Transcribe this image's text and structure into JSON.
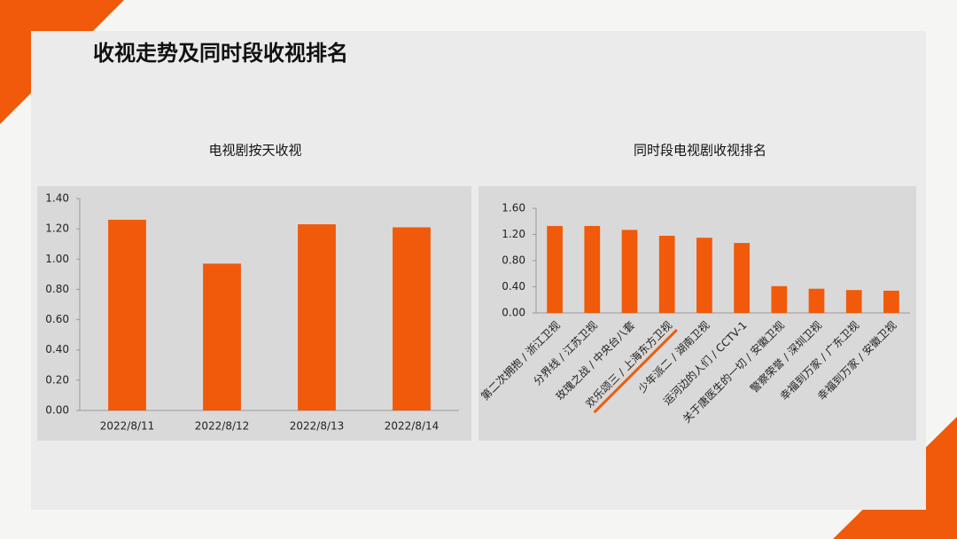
{
  "slide_title": "收视走势及同时段收视排名",
  "chart_data": [
    {
      "type": "bar",
      "title": "电视剧按天收视",
      "categories": [
        "2022/8/11",
        "2022/8/12",
        "2022/8/13",
        "2022/8/14"
      ],
      "values": [
        1.26,
        0.97,
        1.23,
        1.21
      ],
      "color": "#f05a0a",
      "ylim": [
        0,
        1.4
      ],
      "yticks": [
        {
          "value": 0,
          "label": "0.00"
        },
        {
          "value": 0.2,
          "label": "0.20"
        },
        {
          "value": 0.4,
          "label": "0.40"
        },
        {
          "value": 0.6,
          "label": "0.60"
        },
        {
          "value": 0.8,
          "label": "0.80"
        },
        {
          "value": 1.0,
          "label": "1.00"
        },
        {
          "value": 1.2,
          "label": "1.20"
        },
        {
          "value": 1.4,
          "label": "1.40"
        }
      ],
      "grid": false
    },
    {
      "type": "bar",
      "title": "同时段电视剧收视排名",
      "categories": [
        "第二次拥抱 / 浙江卫视",
        "分界线 / 江苏卫视",
        "玫瑰之战 / 中央台八套",
        "欢乐颂三 / 上海东方卫视",
        "少年派二 / 湖南卫视",
        "运河边的人们 / CCTV-1",
        "关于唐医生的一切 / 安徽卫视",
        "警察荣誉 / 深圳卫视",
        "幸福到万家 / 广东卫视",
        "幸福到万家 / 安徽卫视"
      ],
      "values": [
        1.33,
        1.33,
        1.27,
        1.18,
        1.15,
        1.07,
        0.41,
        0.37,
        0.35,
        0.34
      ],
      "color": "#f05a0a",
      "highlight_category": 3,
      "ylim": [
        0,
        1.6
      ],
      "yticks": [
        {
          "value": 0,
          "label": "0.00"
        },
        {
          "value": 0.4,
          "label": "0.40"
        },
        {
          "value": 0.8,
          "label": "0.80"
        },
        {
          "value": 1.2,
          "label": "1.20"
        },
        {
          "value": 1.6,
          "label": "1.60"
        }
      ],
      "grid": false
    }
  ]
}
